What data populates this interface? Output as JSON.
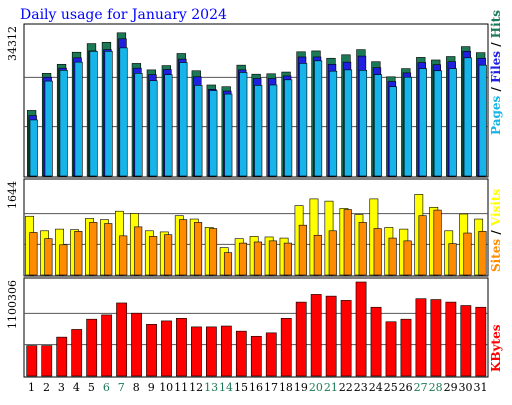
{
  "title": "Daily usage for January 2024",
  "colors": {
    "hits": "#1b7a55",
    "files": "#2020e0",
    "pages": "#16b4e8",
    "visits": "#ffff00",
    "sites": "#ff8c00",
    "kbytes": "#ff0000",
    "title": "#0000ff",
    "weekend_label": "#1b7a55",
    "weekday_label": "#000000"
  },
  "right_labels": {
    "hits": "Hits",
    "files": "Files",
    "pages": "Pages",
    "visits": "Visits",
    "sites": "Sites",
    "kbytes": "KBytes",
    "separator": "/"
  },
  "chart_data": {
    "type": "bar",
    "title": "Daily usage for January 2024",
    "categories": [
      "1",
      "2",
      "3",
      "4",
      "5",
      "6",
      "7",
      "8",
      "9",
      "10",
      "11",
      "12",
      "13",
      "14",
      "15",
      "16",
      "17",
      "18",
      "19",
      "20",
      "21",
      "22",
      "23",
      "24",
      "25",
      "26",
      "27",
      "28",
      "29",
      "30",
      "31"
    ],
    "weekend_days": [
      "6",
      "7",
      "13",
      "14",
      "20",
      "21",
      "27",
      "28"
    ],
    "panels": [
      {
        "name": "hits-files-pages",
        "ymax": 34312,
        "ymax_label": "34312",
        "series": [
          {
            "name": "Hits",
            "values": [
              15200,
              23800,
              25900,
              28700,
              30700,
              31000,
              33200,
              26100,
              24600,
              25600,
              28400,
              24400,
              21100,
              20700,
              25700,
              23600,
              23700,
              24100,
              28800,
              29000,
              27300,
              28100,
              29300,
              26500,
              23000,
              24900,
              27500,
              26900,
              27700,
              30000,
              28600
            ]
          },
          {
            "name": "Files",
            "values": [
              14000,
              22900,
              25000,
              27400,
              29000,
              29300,
              31800,
              25000,
              23500,
              24700,
              27100,
              23000,
              20100,
              19700,
              24600,
              22600,
              22600,
              23200,
              27600,
              27600,
              25900,
              26400,
              27800,
              25100,
              21900,
              23900,
              26300,
              25800,
              26500,
              28900,
              27300
            ]
          },
          {
            "name": "Pages",
            "values": [
              13000,
              22000,
              24500,
              26400,
              28900,
              28900,
              29700,
              23800,
              22100,
              23500,
              26300,
              21000,
              19800,
              19000,
              24000,
              21000,
              21100,
              22300,
              26100,
              26700,
              24300,
              24600,
              24500,
              23500,
              20700,
              22900,
              24900,
              24400,
              24900,
              27400,
              25700
            ]
          }
        ]
      },
      {
        "name": "visits-sites",
        "ymax": 1644,
        "ymax_label": "1644",
        "series": [
          {
            "name": "Visits",
            "values": [
              1050,
              790,
              820,
              810,
              1010,
              990,
              1140,
              1100,
              790,
              770,
              1060,
              1000,
              850,
              490,
              650,
              690,
              680,
              660,
              1240,
              1360,
              1320,
              1190,
              1080,
              1360,
              850,
              820,
              1440,
              1210,
              790,
              1090,
              1000
            ]
          },
          {
            "name": "Sites",
            "values": [
              760,
              650,
              540,
              780,
              940,
              920,
              700,
              860,
              690,
              720,
              990,
              940,
              830,
              400,
              570,
              590,
              610,
              570,
              890,
              710,
              790,
              1170,
              940,
              830,
              660,
              610,
              1060,
              1160,
              560,
              750,
              780
            ]
          }
        ]
      },
      {
        "name": "kbytes",
        "ymax": 1100306,
        "ymax_label": "1100306",
        "series": [
          {
            "name": "KBytes",
            "values": [
              355000,
              355000,
              455000,
              545000,
              665000,
              715000,
              855000,
              735000,
              605000,
              645000,
              675000,
              575000,
              575000,
              585000,
              525000,
              465000,
              505000,
              675000,
              865000,
              955000,
              935000,
              885000,
              1100306,
              805000,
              635000,
              665000,
              905000,
              895000,
              865000,
              825000,
              805000
            ]
          }
        ]
      }
    ]
  }
}
